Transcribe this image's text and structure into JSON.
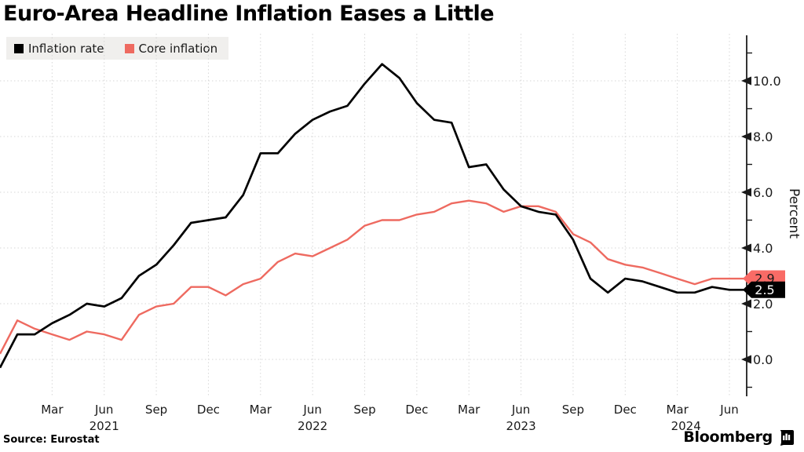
{
  "title": "Euro-Area Headline Inflation Eases a Little",
  "legend": {
    "items": [
      {
        "label": "Inflation rate",
        "color": "#000000"
      },
      {
        "label": "Core inflation",
        "color": "#ee6a60"
      }
    ]
  },
  "footer": {
    "source": "Source: Eurostat",
    "brand": "Bloomberg"
  },
  "chart_data": {
    "type": "line",
    "title": "Euro-Area Headline Inflation Eases a Little",
    "ylabel": "Percent",
    "ylim": [
      -1.3,
      11.6
    ],
    "y_ticks_major": [
      0.0,
      2.0,
      4.0,
      6.0,
      8.0,
      10.0
    ],
    "y_ticks_minor": [
      -1.0,
      1.0,
      3.0,
      5.0,
      7.0,
      9.0,
      11.0
    ],
    "grid": true,
    "legend_position": "top-left",
    "x_start_month": "2020-12",
    "x_end_month": "2024-06",
    "x_ticks": [
      {
        "label": "Mar",
        "i": 3
      },
      {
        "label": "Jun",
        "i": 6
      },
      {
        "label": "Sep",
        "i": 9
      },
      {
        "label": "Dec",
        "i": 12
      },
      {
        "label": "Mar",
        "i": 15
      },
      {
        "label": "Jun",
        "i": 18
      },
      {
        "label": "Sep",
        "i": 21
      },
      {
        "label": "Dec",
        "i": 24
      },
      {
        "label": "Mar",
        "i": 27
      },
      {
        "label": "Jun",
        "i": 30
      },
      {
        "label": "Sep",
        "i": 33
      },
      {
        "label": "Dec",
        "i": 36
      },
      {
        "label": "Mar",
        "i": 39
      },
      {
        "label": "Jun",
        "i": 42
      }
    ],
    "year_labels": [
      {
        "label": "2021",
        "i": 6
      },
      {
        "label": "2022",
        "i": 18
      },
      {
        "label": "2023",
        "i": 30
      },
      {
        "label": "2024",
        "i": 39.5
      }
    ],
    "series": [
      {
        "name": "Inflation rate",
        "slug": "inflation-rate",
        "color": "#000000",
        "end_tag": {
          "text": "2.5",
          "bg": "#000000",
          "fg": "#ffffff"
        },
        "values": [
          -0.3,
          0.9,
          0.9,
          1.3,
          1.6,
          2.0,
          1.9,
          2.2,
          3.0,
          3.4,
          4.1,
          4.9,
          5.0,
          5.1,
          5.9,
          7.4,
          7.4,
          8.1,
          8.6,
          8.9,
          9.1,
          9.9,
          10.6,
          10.1,
          9.2,
          8.6,
          8.5,
          6.9,
          7.0,
          6.1,
          5.5,
          5.3,
          5.2,
          4.3,
          2.9,
          2.4,
          2.9,
          2.8,
          2.6,
          2.4,
          2.4,
          2.6,
          2.5
        ]
      },
      {
        "name": "Core inflation",
        "slug": "core-inflation",
        "color": "#ee6a60",
        "end_tag": {
          "text": "2.9",
          "bg": "#f96b66",
          "fg": "#1a1a1a"
        },
        "values": [
          0.2,
          1.4,
          1.1,
          0.9,
          0.7,
          1.0,
          0.9,
          0.7,
          1.6,
          1.9,
          2.0,
          2.6,
          2.6,
          2.3,
          2.7,
          2.9,
          3.5,
          3.8,
          3.7,
          4.0,
          4.3,
          4.8,
          5.0,
          5.0,
          5.2,
          5.3,
          5.6,
          5.7,
          5.6,
          5.3,
          5.5,
          5.5,
          5.3,
          4.5,
          4.2,
          3.6,
          3.4,
          3.3,
          3.1,
          2.9,
          2.7,
          2.9,
          2.9
        ]
      }
    ]
  }
}
